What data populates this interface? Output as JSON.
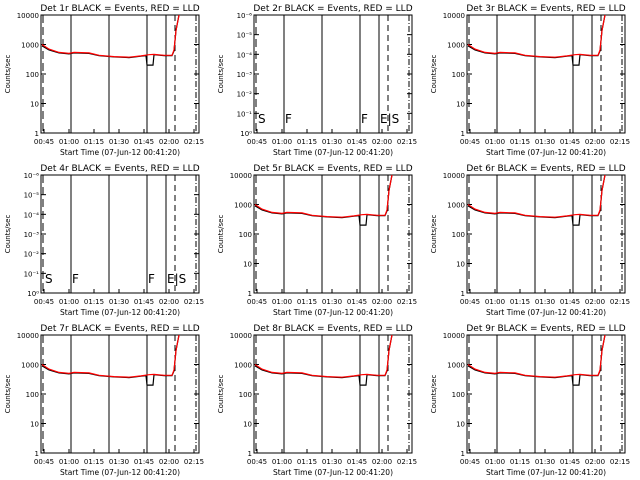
{
  "chart_data": {
    "type": "line",
    "xlabel": "Start Time (07-Jun-12 00:41:20)",
    "ylabel": "Counts/sec",
    "xticks": [
      "00:45",
      "01:00",
      "01:15",
      "01:30",
      "01:45",
      "02:00",
      "02:15"
    ],
    "xtick_hours": [
      0.75,
      1.0,
      1.25,
      1.5,
      1.75,
      2.0,
      2.25
    ],
    "xlim_hours": [
      0.72,
      2.3
    ],
    "solid_lines_hours": [
      1.02,
      1.4,
      1.78,
      1.97
    ],
    "dashed_line_hours": 2.06,
    "dashdot_line_hours": 2.27,
    "colors": {
      "events": "#000000",
      "lld": "#ff0000"
    },
    "panels": [
      {
        "title": "Det 1r BLACK = Events, RED = LLD",
        "yticks": [
          "1",
          "10",
          "100",
          "1000",
          "10000"
        ],
        "ylim": [
          1,
          10000
        ],
        "has_data": true
      },
      {
        "title": "Det 2r BLACK = Events, RED = LLD",
        "yticks": [
          "10⁰",
          "10⁻¹",
          "10⁻²",
          "10⁻³",
          "10⁻⁴",
          "10⁻⁵",
          "10⁻⁶"
        ],
        "ylim": [
          1,
          1000000
        ],
        "has_data": false,
        "annotations": [
          "S",
          "F",
          "F",
          "E|S"
        ],
        "annotation_hours": [
          0.76,
          1.03,
          1.79,
          1.98
        ]
      },
      {
        "title": "Det 3r BLACK = Events, RED = LLD",
        "yticks": [
          "1",
          "10",
          "100",
          "1000",
          "10000"
        ],
        "ylim": [
          1,
          10000
        ],
        "has_data": true
      },
      {
        "title": "Det 4r BLACK = Events, RED = LLD",
        "yticks": [
          "10⁰",
          "10⁻¹",
          "10⁻²",
          "10⁻³",
          "10⁻⁴",
          "10⁻⁵",
          "10⁻⁶"
        ],
        "ylim": [
          1,
          1000000
        ],
        "has_data": false,
        "annotations": [
          "S",
          "F",
          "F",
          "E|S"
        ],
        "annotation_hours": [
          0.76,
          1.03,
          1.79,
          1.98
        ]
      },
      {
        "title": "Det 5r BLACK = Events, RED = LLD",
        "yticks": [
          "1",
          "10",
          "100",
          "1000",
          "10000"
        ],
        "ylim": [
          1,
          10000
        ],
        "has_data": true
      },
      {
        "title": "Det 6r BLACK = Events, RED = LLD",
        "yticks": [
          "1",
          "10",
          "100",
          "1000",
          "10000"
        ],
        "ylim": [
          1,
          10000
        ],
        "has_data": true
      },
      {
        "title": "Det 7r BLACK = Events, RED = LLD",
        "yticks": [
          "1",
          "10",
          "100",
          "1000",
          "10000"
        ],
        "ylim": [
          1,
          10000
        ],
        "has_data": true
      },
      {
        "title": "Det 8r BLACK = Events, RED = LLD",
        "yticks": [
          "1",
          "10",
          "100",
          "1000",
          "10000"
        ],
        "ylim": [
          1,
          10000
        ],
        "has_data": true
      },
      {
        "title": "Det 9r BLACK = Events, RED = LLD",
        "yticks": [
          "1",
          "10",
          "100",
          "1000",
          "10000"
        ],
        "ylim": [
          1,
          10000
        ],
        "has_data": true
      }
    ],
    "series": [
      {
        "name": "Events",
        "x": [
          0.73,
          0.8,
          0.9,
          1.0,
          1.05,
          1.2,
          1.3,
          1.45,
          1.6,
          1.72,
          1.77,
          1.78,
          1.84,
          1.85,
          1.95,
          2.03,
          2.05,
          2.07,
          2.1
        ],
        "y": [
          900,
          650,
          520,
          480,
          520,
          500,
          420,
          380,
          360,
          400,
          420,
          200,
          200,
          450,
          420,
          420,
          600,
          3000,
          10000
        ]
      },
      {
        "name": "LLD",
        "x": [
          0.73,
          0.8,
          0.9,
          1.0,
          1.05,
          1.2,
          1.3,
          1.45,
          1.6,
          1.72,
          1.8,
          1.85,
          1.95,
          2.03,
          2.05,
          2.07,
          2.1
        ],
        "y": [
          1000,
          700,
          540,
          500,
          540,
          520,
          430,
          390,
          370,
          410,
          450,
          460,
          430,
          430,
          650,
          3000,
          10000
        ]
      }
    ]
  }
}
